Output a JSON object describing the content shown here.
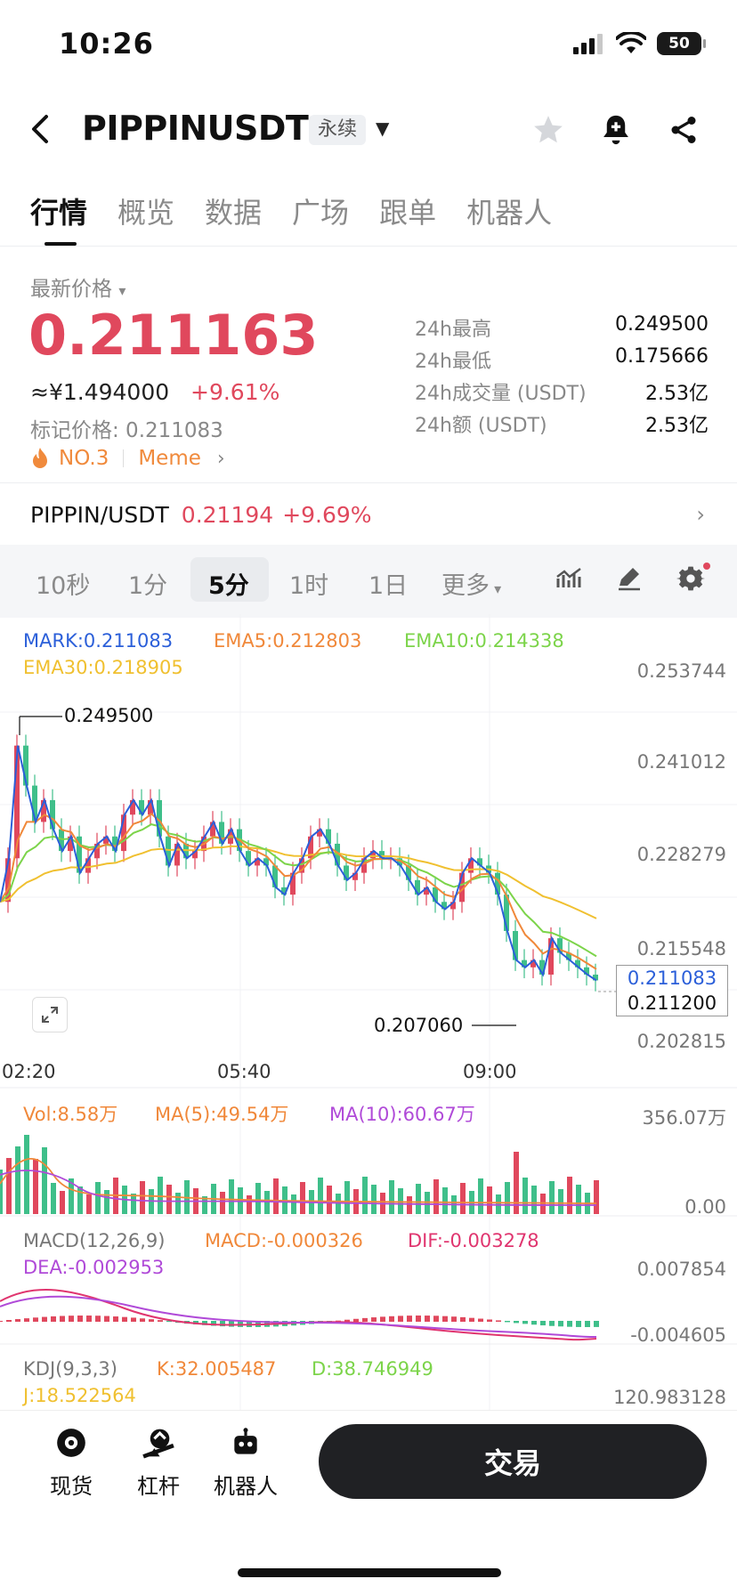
{
  "status": {
    "time": "10:26",
    "battery": "50"
  },
  "header": {
    "symbol": "PIPPINUSDT",
    "contract_tag": "永续"
  },
  "tabs": [
    {
      "label": "行情",
      "active": true
    },
    {
      "label": "概览"
    },
    {
      "label": "数据"
    },
    {
      "label": "广场"
    },
    {
      "label": "跟单"
    },
    {
      "label": "机器人"
    }
  ],
  "price": {
    "latest_label": "最新价格",
    "last": "0.211163",
    "cny": "≈¥1.494000",
    "change": "+9.61%",
    "mark_label": "标记价格: 0.211083",
    "rank": "NO.3",
    "category": "Meme"
  },
  "stats": [
    {
      "label": "24h最高",
      "value": "0.249500"
    },
    {
      "label": "24h最低",
      "value": "0.175666"
    },
    {
      "label": "24h成交量 (USDT)",
      "value": "2.53亿"
    },
    {
      "label": "24h额 (USDT)",
      "value": "2.53亿"
    }
  ],
  "spot": {
    "pair": "PIPPIN/USDT",
    "price": "0.21194",
    "change": "+9.69%"
  },
  "timeframes": {
    "items": [
      "10秒",
      "1分",
      "5分",
      "1时",
      "1日",
      "更多"
    ],
    "active": "5分"
  },
  "main_legend": {
    "mark": "MARK:0.211083",
    "ema5": "EMA5:0.212803",
    "ema10": "EMA10:0.214338",
    "ema30": "EMA30:0.218905"
  },
  "price_axis": [
    "0.253744",
    "0.241012",
    "0.228279",
    "0.215548",
    "0.202815"
  ],
  "time_axis": [
    "02:20",
    "05:40",
    "09:00"
  ],
  "annotations": {
    "high": "0.249500",
    "low": "0.207060",
    "mark_tag": "0.211083",
    "last_tag": "0.211200"
  },
  "vol_legend": {
    "vol": "Vol:8.58万",
    "ma5": "MA(5):49.54万",
    "ma10": "MA(10):60.67万",
    "top": "356.07万",
    "bottom": "0.00"
  },
  "macd_legend": {
    "title": "MACD(12,26,9)",
    "macd": "MACD:-0.000326",
    "dif": "DIF:-0.003278",
    "dea": "DEA:-0.002953",
    "top": "0.007854",
    "bottom": "-0.004605"
  },
  "kdj_legend": {
    "title": "KDJ(9,3,3)",
    "k": "K:32.005487",
    "d": "D:38.746949",
    "j": "J:18.522564",
    "top": "120.983128"
  },
  "bottom": {
    "spot": "现货",
    "margin": "杠杆",
    "bot": "机器人",
    "trade": "交易"
  },
  "colors": {
    "up": "#e0485d",
    "down": "#3fbf8a",
    "mark": "#2b5fd9",
    "ema5": "#f0883a",
    "ema10": "#7cd44a",
    "ema30": "#f0c030",
    "ma10": "#b04ad8",
    "dif": "#e0356f",
    "dea": "#b04ad8"
  }
}
